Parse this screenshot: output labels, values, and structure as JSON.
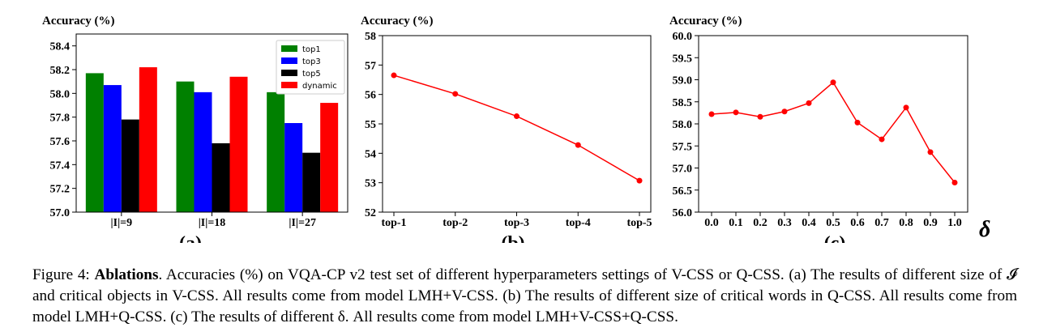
{
  "chart_data": [
    {
      "type": "bar",
      "panel_label": "(a)",
      "ylabel": "Accuracy (%)",
      "ylim": [
        57.0,
        58.5
      ],
      "yticks": [
        "57.0",
        "57.2",
        "57.4",
        "57.6",
        "57.8",
        "58.0",
        "58.2",
        "58.4"
      ],
      "categories": [
        "|I|=9",
        "|I|=18",
        "|I|=27"
      ],
      "series": [
        {
          "name": "top1",
          "color": "#008000",
          "values": [
            58.17,
            58.1,
            58.01
          ]
        },
        {
          "name": "top3",
          "color": "#0000ff",
          "values": [
            58.07,
            58.01,
            57.75
          ]
        },
        {
          "name": "top5",
          "color": "#000000",
          "values": [
            57.78,
            57.58,
            57.5
          ]
        },
        {
          "name": "dynamic",
          "color": "#ff0000",
          "values": [
            58.22,
            58.14,
            57.92
          ]
        }
      ],
      "legend": "top-right"
    },
    {
      "type": "line",
      "panel_label": "(b)",
      "ylabel": "Accuracy (%)",
      "ylim": [
        52,
        58
      ],
      "yticks": [
        "52",
        "53",
        "54",
        "55",
        "56",
        "57",
        "58"
      ],
      "categories": [
        "top-1",
        "top-2",
        "top-3",
        "top-4",
        "top-5"
      ],
      "values": [
        56.65,
        56.02,
        55.26,
        54.28,
        53.07
      ],
      "color": "#ff0000"
    },
    {
      "type": "line",
      "panel_label": "(c)",
      "ylabel": "Accuracy (%)",
      "xlabel": "δ",
      "ylim": [
        56.0,
        60.0
      ],
      "yticks": [
        "56.0",
        "56.5",
        "57.0",
        "57.5",
        "58.0",
        "58.5",
        "59.0",
        "59.5",
        "60.0"
      ],
      "categories": [
        "0.0",
        "0.1",
        "0.2",
        "0.3",
        "0.4",
        "0.5",
        "0.6",
        "0.7",
        "0.8",
        "0.9",
        "1.0"
      ],
      "values": [
        58.22,
        58.26,
        58.16,
        58.28,
        58.47,
        58.94,
        58.03,
        57.65,
        58.37,
        57.36,
        56.67
      ],
      "color": "#ff0000"
    }
  ],
  "caption": {
    "figure_label": "Figure 4:",
    "title": "Ablations",
    "text": ". Accuracies (%) on VQA-CP v2 test set of different hyperparameters settings of V-CSS or Q-CSS. (a) The results of different size of 𝓘 and critical objects in V-CSS. All results come from model LMH+V-CSS. (b) The results of different size of critical words in Q-CSS. All results come from model LMH+Q-CSS. (c) The results of different δ. All results come from model LMH+V-CSS+Q-CSS."
  }
}
